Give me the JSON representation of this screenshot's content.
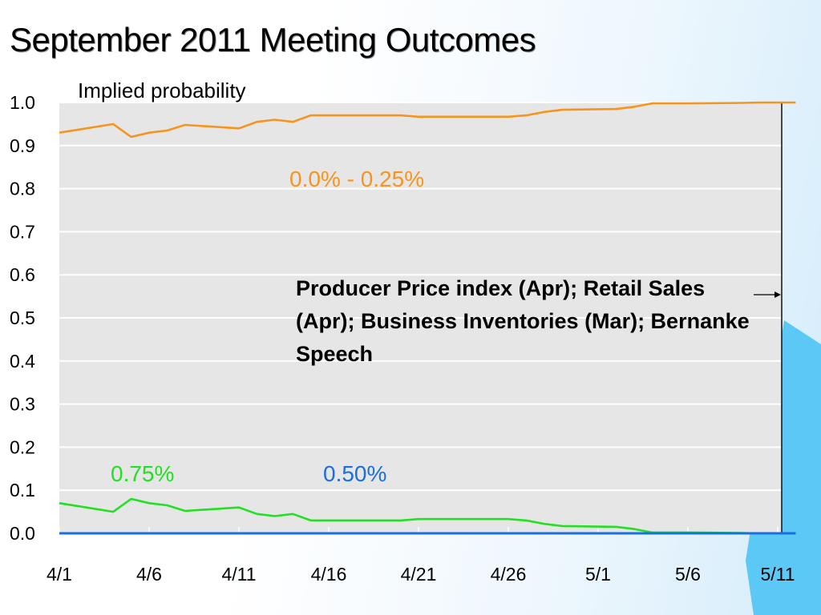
{
  "slide": {
    "title": "September 2011 Meeting Outcomes"
  },
  "chart_data": {
    "type": "line",
    "subtitle": "Implied probability",
    "xlabel": "",
    "ylabel": "",
    "ylim": [
      0,
      1
    ],
    "yticks": [
      "0.0",
      "0.1",
      "0.2",
      "0.3",
      "0.4",
      "0.5",
      "0.6",
      "0.7",
      "0.8",
      "0.9",
      "1.0"
    ],
    "xticks": [
      "4/1",
      "4/6",
      "4/11",
      "4/16",
      "4/21",
      "4/26",
      "5/1",
      "5/6",
      "5/11"
    ],
    "grid": true,
    "x": [
      "4/1",
      "4/4",
      "4/5",
      "4/6",
      "4/7",
      "4/8",
      "4/11",
      "4/12",
      "4/13",
      "4/14",
      "4/15",
      "4/18",
      "4/19",
      "4/20",
      "4/21",
      "4/22",
      "4/25",
      "4/26",
      "4/27",
      "4/28",
      "4/29",
      "5/2",
      "5/3",
      "5/4",
      "5/5",
      "5/6",
      "5/9",
      "5/10",
      "5/11",
      "5/12"
    ],
    "series": [
      {
        "name": "0.0% - 0.25%",
        "color": "#f7941d",
        "values": [
          0.93,
          0.95,
          0.92,
          0.93,
          0.935,
          0.948,
          0.94,
          0.955,
          0.96,
          0.955,
          0.97,
          0.97,
          0.97,
          0.97,
          0.967,
          0.967,
          0.967,
          0.967,
          0.97,
          0.978,
          0.983,
          0.985,
          0.99,
          0.998,
          0.998,
          0.998,
          0.999,
          1.0,
          1.0,
          1.0
        ]
      },
      {
        "name": "0.75%",
        "color": "#22e022",
        "values": [
          0.07,
          0.05,
          0.08,
          0.07,
          0.065,
          0.052,
          0.06,
          0.045,
          0.04,
          0.045,
          0.03,
          0.03,
          0.03,
          0.03,
          0.033,
          0.033,
          0.033,
          0.033,
          0.03,
          0.022,
          0.017,
          0.015,
          0.01,
          0.002,
          0.002,
          0.002,
          0.001,
          0.0,
          0.0,
          0.0
        ]
      },
      {
        "name": "0.50%",
        "color": "#1a6fe0",
        "values": [
          0,
          0,
          0,
          0,
          0,
          0,
          0,
          0,
          0,
          0,
          0,
          0,
          0,
          0,
          0,
          0,
          0,
          0,
          0,
          0,
          0,
          0,
          0,
          0,
          0,
          0,
          0,
          0,
          0,
          0
        ]
      }
    ],
    "annotation": "Producer Price index (Apr); Retail Sales (Apr); Business Inventories (Mar); Bernanke Speech"
  }
}
